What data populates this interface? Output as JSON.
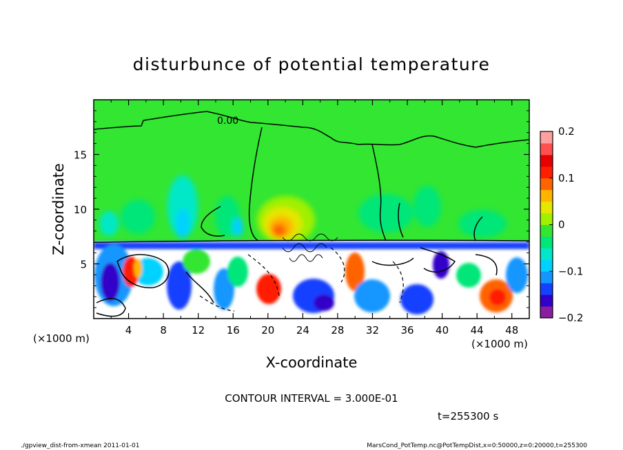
{
  "chart_data": {
    "type": "heatmap",
    "title": "disturbunce of potential temperature",
    "xlabel": "X-coordinate",
    "ylabel": "Z-coordinate",
    "x_unit": "(×1000 m)",
    "z_unit": "(×1000 m)",
    "xlim": [
      0,
      50
    ],
    "ylim": [
      0,
      20
    ],
    "x_ticks": [
      "4",
      "8",
      "12",
      "16",
      "20",
      "24",
      "28",
      "32",
      "36",
      "40",
      "44",
      "48"
    ],
    "y_ticks": [
      "5",
      "10",
      "15"
    ],
    "contour_label": "0.00",
    "colorbar": {
      "range": [
        -0.2,
        0.2
      ],
      "ticks": [
        "0.2",
        "0.1",
        "0",
        "-0.1",
        "-0.2"
      ],
      "colors": [
        "#8a1ea0",
        "#3200c8",
        "#1440ff",
        "#1496ff",
        "#00d2ff",
        "#00e8c8",
        "#00e678",
        "#32e632",
        "#a0f000",
        "#e6e600",
        "#ffb400",
        "#ff6400",
        "#ff1e00",
        "#e60000",
        "#ff5050",
        "#ffa0a0"
      ]
    },
    "contour_interval": "CONTOUR INTERVAL = 3.000E-01",
    "time": "t=255300 s"
  },
  "footer": {
    "left": "./gpview_dist-from-xmean   2011-01-01",
    "right": "MarsCond_PotTemp.nc@PotTempDist,x=0:50000,z=0:20000,t=255300"
  }
}
